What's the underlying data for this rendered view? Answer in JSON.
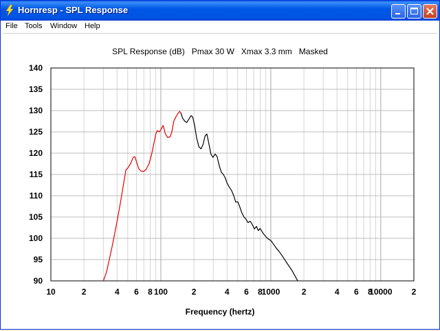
{
  "window": {
    "title": "Hornresp - SPL Response",
    "icon": "lightning-bolt-icon",
    "controls": [
      "minimize-icon",
      "maximize-icon",
      "close-icon"
    ]
  },
  "menu": {
    "items": [
      "File",
      "Tools",
      "Window",
      "Help"
    ]
  },
  "chart_data": {
    "type": "line",
    "title": "SPL Response (dB)   Pmax 30 W   Xmax 3.3 mm   Masked",
    "xlabel": "Frequency (hertz)",
    "ylabel": "",
    "xscale": "log",
    "xlim": [
      10,
      20000
    ],
    "ylim": [
      90,
      140
    ],
    "grid": true,
    "yticks": [
      "90",
      "95",
      "100",
      "105",
      "110",
      "115",
      "120",
      "125",
      "130",
      "135",
      "140"
    ],
    "xticks": [
      {
        "value": 10,
        "label": "10"
      },
      {
        "value": 20,
        "label": "2"
      },
      {
        "value": 40,
        "label": "4"
      },
      {
        "value": 60,
        "label": "6"
      },
      {
        "value": 80,
        "label": "8"
      },
      {
        "value": 100,
        "label": "100"
      },
      {
        "value": 200,
        "label": "2"
      },
      {
        "value": 400,
        "label": "4"
      },
      {
        "value": 600,
        "label": "6"
      },
      {
        "value": 800,
        "label": "8"
      },
      {
        "value": 1000,
        "label": "1000"
      },
      {
        "value": 2000,
        "label": "2"
      },
      {
        "value": 4000,
        "label": "4"
      },
      {
        "value": 6000,
        "label": "6"
      },
      {
        "value": 8000,
        "label": "8"
      },
      {
        "value": 10000,
        "label": "10000"
      },
      {
        "value": 20000,
        "label": "2"
      }
    ],
    "series": [
      {
        "color": "#e00000",
        "points": [
          [
            30,
            90
          ],
          [
            32,
            92
          ],
          [
            34,
            95
          ],
          [
            36,
            98
          ],
          [
            38,
            101
          ],
          [
            40,
            104
          ],
          [
            43,
            108.5
          ],
          [
            46,
            113
          ],
          [
            48,
            116
          ],
          [
            50,
            116.5
          ],
          [
            53,
            117.5
          ],
          [
            56,
            119
          ],
          [
            58,
            119.2
          ],
          [
            60,
            118
          ],
          [
            63,
            116.3
          ],
          [
            66,
            115.8
          ],
          [
            70,
            115.7
          ],
          [
            74,
            116.3
          ],
          [
            78,
            117.5
          ],
          [
            82,
            119.5
          ],
          [
            86,
            122
          ],
          [
            90,
            124.5
          ],
          [
            93,
            125.3
          ],
          [
            97,
            125
          ],
          [
            101,
            125.7
          ],
          [
            105,
            126.5
          ],
          [
            110,
            124.5
          ],
          [
            115,
            123.7
          ],
          [
            121,
            123.8
          ],
          [
            126,
            125
          ],
          [
            131,
            127.5
          ],
          [
            137,
            128.5
          ],
          [
            142,
            129.2
          ],
          [
            148,
            129.8
          ],
          [
            152,
            129.5
          ]
        ]
      },
      {
        "color": "#000000",
        "points": [
          [
            152,
            129.5
          ],
          [
            158,
            128.2
          ],
          [
            165,
            127.5
          ],
          [
            172,
            127.2
          ],
          [
            180,
            128
          ],
          [
            188,
            128.8
          ],
          [
            195,
            128.5
          ],
          [
            203,
            126.5
          ],
          [
            212,
            123.5
          ],
          [
            222,
            121.5
          ],
          [
            232,
            121
          ],
          [
            242,
            122
          ],
          [
            252,
            124
          ],
          [
            262,
            124.5
          ],
          [
            272,
            122.5
          ],
          [
            285,
            119.8
          ],
          [
            298,
            119
          ],
          [
            312,
            119.8
          ],
          [
            325,
            119.2
          ],
          [
            340,
            117
          ],
          [
            355,
            115.5
          ],
          [
            370,
            115
          ],
          [
            385,
            114.2
          ],
          [
            400,
            113
          ],
          [
            420,
            112
          ],
          [
            440,
            111.2
          ],
          [
            460,
            110
          ],
          [
            480,
            108.5
          ],
          [
            500,
            108.6
          ],
          [
            520,
            107.5
          ],
          [
            545,
            106
          ],
          [
            570,
            105
          ],
          [
            595,
            104.5
          ],
          [
            620,
            103.7
          ],
          [
            650,
            104
          ],
          [
            680,
            103.2
          ],
          [
            710,
            102.2
          ],
          [
            740,
            102.8
          ],
          [
            770,
            101.8
          ],
          [
            800,
            102.3
          ],
          [
            850,
            101.2
          ],
          [
            900,
            100.4
          ],
          [
            950,
            99.8
          ],
          [
            1000,
            99.5
          ],
          [
            1060,
            98.6
          ],
          [
            1120,
            97.7
          ],
          [
            1190,
            96.9
          ],
          [
            1260,
            96
          ],
          [
            1330,
            95.1
          ],
          [
            1400,
            94.2
          ],
          [
            1480,
            93.3
          ],
          [
            1560,
            92.4
          ],
          [
            1640,
            91.4
          ],
          [
            1720,
            90.4
          ],
          [
            1760,
            90
          ]
        ]
      }
    ]
  }
}
